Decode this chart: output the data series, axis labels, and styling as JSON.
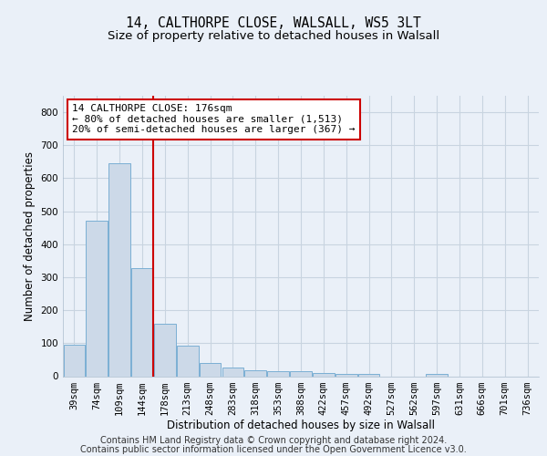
{
  "title_line1": "14, CALTHORPE CLOSE, WALSALL, WS5 3LT",
  "title_line2": "Size of property relative to detached houses in Walsall",
  "xlabel": "Distribution of detached houses by size in Walsall",
  "ylabel": "Number of detached properties",
  "categories": [
    "39sqm",
    "74sqm",
    "109sqm",
    "144sqm",
    "178sqm",
    "213sqm",
    "248sqm",
    "283sqm",
    "318sqm",
    "353sqm",
    "388sqm",
    "422sqm",
    "457sqm",
    "492sqm",
    "527sqm",
    "562sqm",
    "597sqm",
    "631sqm",
    "666sqm",
    "701sqm",
    "736sqm"
  ],
  "values": [
    95,
    470,
    645,
    328,
    158,
    92,
    40,
    25,
    18,
    15,
    14,
    10,
    8,
    6,
    0,
    0,
    8,
    0,
    0,
    0,
    0
  ],
  "bar_color": "#ccd9e8",
  "bar_edge_color": "#7bafd4",
  "vline_x_index": 4,
  "vline_color": "#cc0000",
  "annotation_text": "14 CALTHORPE CLOSE: 176sqm\n← 80% of detached houses are smaller (1,513)\n20% of semi-detached houses are larger (367) →",
  "annotation_box_color": "#ffffff",
  "annotation_box_edge": "#cc0000",
  "ylim": [
    0,
    850
  ],
  "yticks": [
    0,
    100,
    200,
    300,
    400,
    500,
    600,
    700,
    800
  ],
  "footer_line1": "Contains HM Land Registry data © Crown copyright and database right 2024.",
  "footer_line2": "Contains public sector information licensed under the Open Government Licence v3.0.",
  "bg_color": "#eaf0f8",
  "plot_bg_color": "#eaf0f8",
  "grid_color": "#c8d4e0",
  "title_fontsize": 10.5,
  "subtitle_fontsize": 9.5,
  "axis_label_fontsize": 8.5,
  "tick_fontsize": 7.5,
  "footer_fontsize": 7.0,
  "annotation_fontsize": 8.0
}
